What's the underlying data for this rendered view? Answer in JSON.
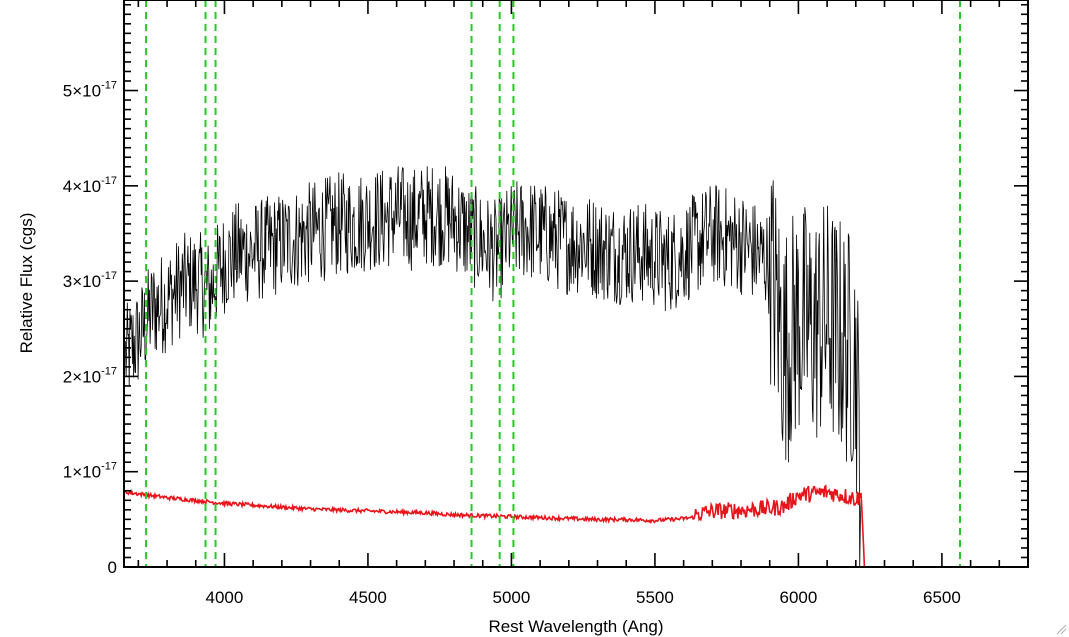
{
  "chart_data": {
    "type": "line",
    "title": "",
    "xlabel": "Rest Wavelength (Ang)",
    "ylabel": "Relative Flux (cgs)",
    "xlim": [
      3650,
      6800
    ],
    "ylim": [
      0,
      5.95e-17
    ],
    "x_ticks": [
      {
        "value": 4000,
        "label": "4000"
      },
      {
        "value": 4500,
        "label": "4500"
      },
      {
        "value": 5000,
        "label": "5000"
      },
      {
        "value": 5500,
        "label": "5500"
      },
      {
        "value": 6000,
        "label": "6000"
      },
      {
        "value": 6500,
        "label": "6500"
      }
    ],
    "y_ticks": [
      {
        "value": 0,
        "mantissa": "0",
        "exponent": ""
      },
      {
        "value": 1e-17,
        "mantissa": "1×10",
        "exponent": "-17"
      },
      {
        "value": 2e-17,
        "mantissa": "2×10",
        "exponent": "-17"
      },
      {
        "value": 3e-17,
        "mantissa": "3×10",
        "exponent": "-17"
      },
      {
        "value": 4e-17,
        "mantissa": "4×10",
        "exponent": "-17"
      },
      {
        "value": 5e-17,
        "mantissa": "5×10",
        "exponent": "-17"
      }
    ],
    "vertical_markers": [
      3727,
      3934,
      3969,
      4861,
      4959,
      5007,
      6563
    ],
    "grid": false,
    "legend": "none",
    "series": [
      {
        "color": "#000000",
        "x": [
          3655,
          3700,
          3750,
          3800,
          3850,
          3900,
          3950,
          3980,
          4000,
          4050,
          4100,
          4150,
          4200,
          4250,
          4300,
          4350,
          4400,
          4450,
          4500,
          4550,
          4600,
          4650,
          4700,
          4750,
          4800,
          4850,
          4900,
          4950,
          5000,
          5050,
          5100,
          5150,
          5200,
          5250,
          5300,
          5350,
          5400,
          5450,
          5500,
          5550,
          5600,
          5650,
          5700,
          5750,
          5800,
          5850,
          5900,
          5950,
          6000,
          6050,
          6100,
          6150,
          6200,
          6220
        ],
        "values": [
          2.2e-17,
          2.4e-17,
          2.7e-17,
          2.8e-17,
          2.95e-17,
          3e-17,
          2.9e-17,
          3.1e-17,
          3.2e-17,
          3.3e-17,
          3.3e-17,
          3.35e-17,
          3.4e-17,
          3.45e-17,
          3.5e-17,
          3.55e-17,
          3.6e-17,
          3.6e-17,
          3.65e-17,
          3.65e-17,
          3.7e-17,
          3.65e-17,
          3.7e-17,
          3.7e-17,
          3.65e-17,
          3.5e-17,
          3.4e-17,
          3.3e-17,
          3.5e-17,
          3.55e-17,
          3.5e-17,
          3.45e-17,
          3.4e-17,
          3.4e-17,
          3.35e-17,
          3.3e-17,
          3.3e-17,
          3.3e-17,
          3.25e-17,
          3.2e-17,
          3.3e-17,
          3.4e-17,
          3.5e-17,
          3.45e-17,
          3.4e-17,
          3.3e-17,
          3.2e-17,
          2.3e-17,
          2.6e-17,
          2.5e-17,
          2.6e-17,
          2.4e-17,
          2.2e-17,
          8e-18
        ]
      },
      {
        "color": "#e8141b",
        "x": [
          3650,
          3700,
          3800,
          3900,
          4000,
          4100,
          4200,
          4300,
          4400,
          4500,
          4600,
          4700,
          4800,
          4900,
          5000,
          5100,
          5200,
          5300,
          5400,
          5500,
          5600,
          5650,
          5700,
          5800,
          5900,
          5950,
          6000,
          6100,
          6150,
          6200,
          6220,
          6230,
          6800
        ],
        "values": [
          7.8e-18,
          7.6e-18,
          7.2e-18,
          6.9e-18,
          6.6e-18,
          6.4e-18,
          6.2e-18,
          6e-18,
          5.9e-18,
          5.8e-18,
          5.7e-18,
          5.6e-18,
          5.4e-18,
          5.3e-18,
          5.2e-18,
          5.1e-18,
          5e-18,
          4.9e-18,
          4.9e-18,
          4.8e-18,
          5e-18,
          5.2e-18,
          5.5e-18,
          5.6e-18,
          5.8e-18,
          6e-18,
          7.2e-18,
          7.5e-18,
          7.2e-18,
          6.8e-18,
          7e-18,
          0.0,
          0.0
        ]
      }
    ],
    "marker_color": "#22cc22"
  }
}
